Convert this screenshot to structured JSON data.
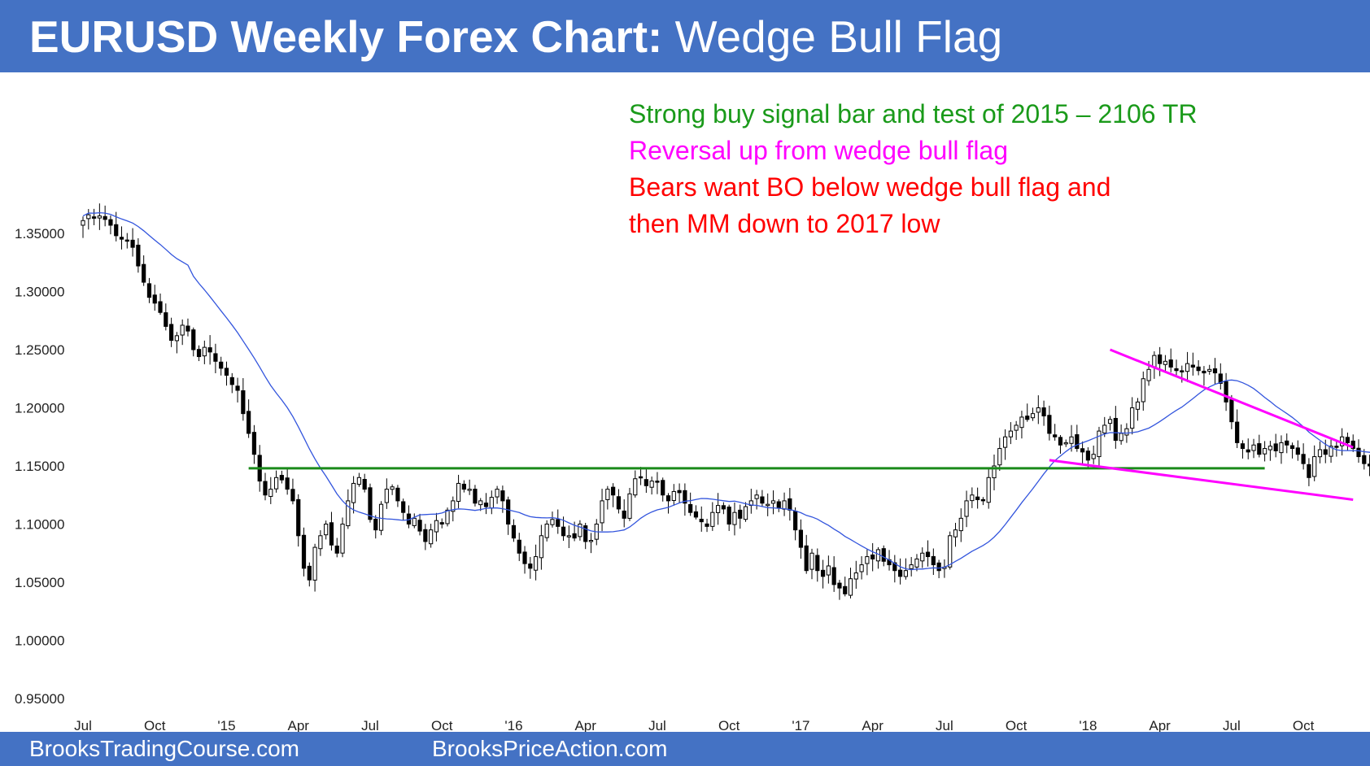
{
  "header": {
    "title_bold": "EURUSD Weekly Forex Chart:",
    "title_light": "Wedge Bull Flag"
  },
  "annotations": [
    {
      "text": "Strong buy signal bar and test of 2015 – 2106 TR",
      "color": "#1a9a1a"
    },
    {
      "text": "Reversal up from wedge bull flag",
      "color": "#ff00ff"
    },
    {
      "text": "Bears want BO below wedge bull flag and",
      "color": "#ff0000"
    },
    {
      "text": "then MM down to 2017 low",
      "color": "#ff0000"
    }
  ],
  "footer": {
    "left": "BrooksTradingCourse.com",
    "right": "BrooksPriceAction.com"
  },
  "colors": {
    "header_bg": "#4472c4",
    "moving_average": "#3355dd",
    "support_line": "#1a8a1a",
    "wedge_lines": "#ff00ff",
    "bull_candle": "#ffffff",
    "bear_candle": "#000000"
  },
  "chart_data": {
    "type": "candlestick",
    "timeframe": "weekly",
    "symbol": "EURUSD",
    "ylim": [
      0.93,
      1.38
    ],
    "y_ticks": [
      "1.35000",
      "1.30000",
      "1.25000",
      "1.20000",
      "1.15000",
      "1.10000",
      "1.05000",
      "1.00000",
      "0.95000"
    ],
    "y_tick_values": [
      1.35,
      1.3,
      1.25,
      1.2,
      1.15,
      1.1,
      1.05,
      1.0,
      0.95
    ],
    "x_ticks": [
      "Jul",
      "Oct",
      "'15",
      "Apr",
      "Jul",
      "Oct",
      "'16",
      "Apr",
      "Jul",
      "Oct",
      "'17",
      "Apr",
      "Jul",
      "Oct",
      "'18",
      "Apr",
      "Jul",
      "Oct"
    ],
    "x_tick_weeks": [
      0,
      13,
      26,
      39,
      52,
      65,
      78,
      91,
      104,
      117,
      130,
      143,
      156,
      169,
      182,
      195,
      208,
      221
    ],
    "week_count": 232,
    "closes": [
      1.361,
      1.366,
      1.363,
      1.365,
      1.362,
      1.357,
      1.348,
      1.345,
      1.344,
      1.338,
      1.322,
      1.308,
      1.295,
      1.29,
      1.282,
      1.27,
      1.258,
      1.262,
      1.271,
      1.266,
      1.25,
      1.244,
      1.252,
      1.248,
      1.24,
      1.234,
      1.228,
      1.22,
      1.215,
      1.195,
      1.178,
      1.16,
      1.137,
      1.125,
      1.13,
      1.14,
      1.138,
      1.13,
      1.12,
      1.09,
      1.062,
      1.052,
      1.08,
      1.09,
      1.1,
      1.082,
      1.075,
      1.1,
      1.12,
      1.135,
      1.14,
      1.13,
      1.104,
      1.095,
      1.117,
      1.13,
      1.132,
      1.12,
      1.11,
      1.1,
      1.105,
      1.094,
      1.085,
      1.095,
      1.103,
      1.1,
      1.112,
      1.12,
      1.135,
      1.13,
      1.13,
      1.118,
      1.12,
      1.115,
      1.123,
      1.13,
      1.12,
      1.1,
      1.088,
      1.075,
      1.066,
      1.062,
      1.072,
      1.09,
      1.1,
      1.104,
      1.098,
      1.09,
      1.09,
      1.088,
      1.1,
      1.085,
      1.086,
      1.1,
      1.12,
      1.13,
      1.125,
      1.113,
      1.105,
      1.126,
      1.139,
      1.14,
      1.133,
      1.137,
      1.136,
      1.125,
      1.12,
      1.128,
      1.127,
      1.118,
      1.11,
      1.106,
      1.102,
      1.098,
      1.11,
      1.116,
      1.113,
      1.1,
      1.11,
      1.105,
      1.115,
      1.12,
      1.125,
      1.118,
      1.117,
      1.12,
      1.114,
      1.12,
      1.112,
      1.095,
      1.08,
      1.06,
      1.075,
      1.06,
      1.055,
      1.064,
      1.048,
      1.045,
      1.04,
      1.053,
      1.058,
      1.065,
      1.072,
      1.07,
      1.078,
      1.068,
      1.065,
      1.06,
      1.055,
      1.06,
      1.065,
      1.07,
      1.075,
      1.072,
      1.065,
      1.06,
      1.063,
      1.09,
      1.095,
      1.105,
      1.12,
      1.125,
      1.121,
      1.12,
      1.14,
      1.15,
      1.165,
      1.175,
      1.18,
      1.185,
      1.192,
      1.19,
      1.195,
      1.2,
      1.193,
      1.178,
      1.175,
      1.168,
      1.17,
      1.175,
      1.165,
      1.162,
      1.155,
      1.16,
      1.18,
      1.185,
      1.19,
      1.172,
      1.178,
      1.182,
      1.2,
      1.205,
      1.225,
      1.233,
      1.245,
      1.238,
      1.24,
      1.235,
      1.232,
      1.231,
      1.238,
      1.235,
      1.232,
      1.23,
      1.233,
      1.23,
      1.221,
      1.205,
      1.188,
      1.17,
      1.165,
      1.162,
      1.168,
      1.16,
      1.165,
      1.167,
      1.163,
      1.17,
      1.168,
      1.165,
      1.16,
      1.152,
      1.14,
      1.158,
      1.164,
      1.16,
      1.167,
      1.166,
      1.175,
      1.17,
      1.165,
      1.158,
      1.152,
      1.15,
      1.14,
      1.135,
      1.138,
      1.145
    ]
  }
}
